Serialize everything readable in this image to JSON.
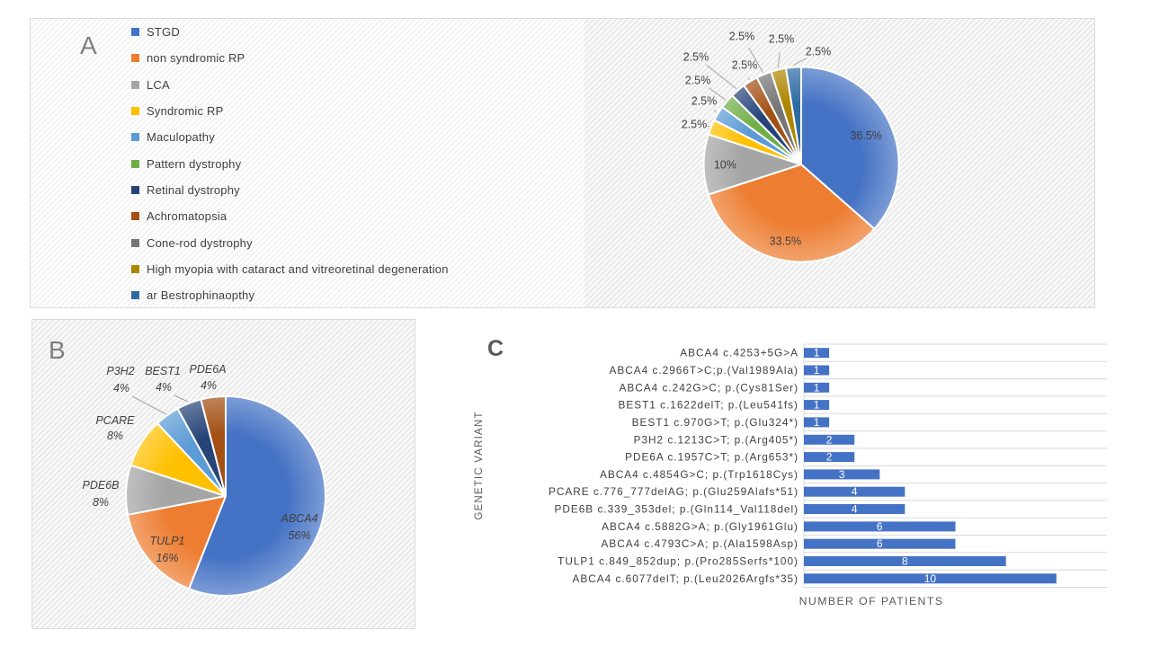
{
  "figure": {
    "panel_a": {
      "letter": "A"
    },
    "panel_b": {
      "letter": "B"
    },
    "panel_c": {
      "letter": "C"
    }
  },
  "chart_data": [
    {
      "type": "pie",
      "panel": "A",
      "categories": [
        "STGD",
        "non syndromic RP",
        "LCA",
        "Syndromic RP",
        "Maculopathy",
        "Pattern dystrophy",
        "Retinal dystrophy",
        "Achromatopsia",
        "Cone-rod dystrophy",
        "High myopia with cataract and vitreoretinal degeneration",
        "ar Bestrophinaopthy"
      ],
      "values": [
        36.5,
        33.5,
        10,
        2.5,
        2.5,
        2.5,
        2.5,
        2.5,
        2.5,
        2.5,
        2.5
      ],
      "labels": [
        "36.5%",
        "33.5%",
        "10%",
        "2.5%",
        "2.5%",
        "2.5%",
        "2.5%",
        "2.5%",
        "2.5%",
        "2.5%",
        "2.5%"
      ],
      "colors": [
        "#4472C4",
        "#ED7D31",
        "#A5A5A5",
        "#FFC000",
        "#5B9BD5",
        "#70AD47",
        "#264478",
        "#A35015",
        "#757575",
        "#AD8600",
        "#2D6CA2"
      ],
      "legend_position": "left",
      "start_angle_deg": 0,
      "direction": "clockwise"
    },
    {
      "type": "pie",
      "panel": "B",
      "categories": [
        "ABCA4",
        "TULP1",
        "PDE6B",
        "PCARE",
        "P3H2",
        "BEST1",
        "PDE6A"
      ],
      "values": [
        56,
        16,
        8,
        8,
        4,
        4,
        4
      ],
      "labels": [
        "56%",
        "16%",
        "8%",
        "8%",
        "4%",
        "4%",
        "4%"
      ],
      "colors": [
        "#4472C4",
        "#ED7D31",
        "#A5A5A5",
        "#FFC000",
        "#5B9BD5",
        "#264478",
        "#A35015"
      ],
      "start_angle_deg": 0,
      "direction": "clockwise"
    },
    {
      "type": "bar",
      "panel": "C",
      "orientation": "horizontal",
      "categories": [
        "ABCA4 c.4253+5G>A",
        "ABCA4 c.2966T>C;p.(Val1989Ala)",
        "ABCA4 c.242G>C; p.(Cys81Ser)",
        "BEST1 c.1622delT; p.(Leu541fs)",
        "BEST1 c.970G>T; p.(Glu324*)",
        "P3H2 c.1213C>T; p.(Arg405*)",
        "PDE6A c.1957C>T; p.(Arg653*)",
        "ABCA4 c.4854G>C; p.(Trp1618Cys)",
        "PCARE c.776_777delAG; p.(Glu259Alafs*51)",
        "PDE6B c.339_353del; p.(Gln114_Val118del)",
        "ABCA4 c.5882G>A; p.(Gly1961Glu)",
        "ABCA4 c.4793C>A; p.(Ala1598Asp)",
        "TULP1 c.849_852dup; p.(Pro285Serfs*100)",
        "ABCA4 c.6077delT; p.(Leu2026Argfs*35)"
      ],
      "values": [
        1,
        1,
        1,
        1,
        1,
        2,
        2,
        3,
        4,
        4,
        6,
        6,
        8,
        10
      ],
      "xlabel": "NUMBER OF PATIENTS",
      "ylabel": "GENETIC VARIANT",
      "xlim": [
        0,
        12
      ],
      "bar_color": "#4472C4",
      "grid": true,
      "value_labels": "inside-center-white",
      "label_color": "#ffffff"
    }
  ]
}
